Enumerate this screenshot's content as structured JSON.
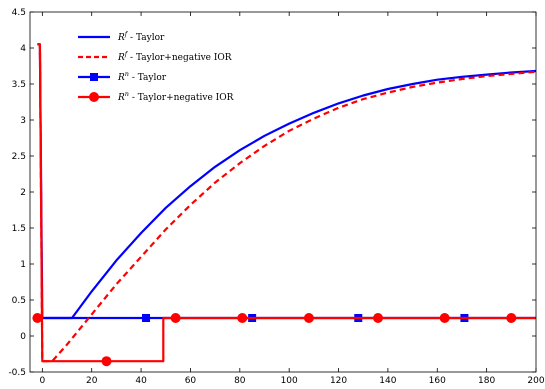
{
  "chart_data": {
    "type": "line",
    "title": "",
    "xlabel": "",
    "ylabel": "",
    "xlim": [
      -5,
      200
    ],
    "ylim": [
      -0.5,
      4.5
    ],
    "xticks": [
      0,
      20,
      40,
      60,
      80,
      100,
      120,
      140,
      160,
      180,
      200
    ],
    "yticks": [
      -0.5,
      0,
      0.5,
      1,
      1.5,
      2,
      2.5,
      3,
      3.5,
      4,
      4.5
    ],
    "xtick_labels": [
      "0",
      "20",
      "40",
      "60",
      "80",
      "100",
      "120",
      "140",
      "160",
      "180",
      "200"
    ],
    "ytick_labels": [
      "-0.5",
      "0",
      "0.5",
      "1",
      "1.5",
      "2",
      "2.5",
      "3",
      "3.5",
      "4",
      "4.5"
    ],
    "grid": false,
    "legend_position": "top-left",
    "series": [
      {
        "name": "R^f - Taylor",
        "legend": {
          "base": "R",
          "sup": "f",
          "text": " - Taylor"
        },
        "color": "#0000ff",
        "style": "solid",
        "marker": "none",
        "points": [
          [
            -2,
            4.05
          ],
          [
            -1,
            4.05
          ],
          [
            0,
            0.25
          ],
          [
            12,
            0.25
          ],
          [
            20,
            0.62
          ],
          [
            30,
            1.05
          ],
          [
            40,
            1.43
          ],
          [
            50,
            1.78
          ],
          [
            60,
            2.08
          ],
          [
            70,
            2.35
          ],
          [
            80,
            2.58
          ],
          [
            90,
            2.78
          ],
          [
            100,
            2.95
          ],
          [
            110,
            3.1
          ],
          [
            120,
            3.23
          ],
          [
            130,
            3.34
          ],
          [
            140,
            3.43
          ],
          [
            150,
            3.5
          ],
          [
            160,
            3.56
          ],
          [
            170,
            3.6
          ],
          [
            180,
            3.63
          ],
          [
            190,
            3.66
          ],
          [
            200,
            3.68
          ]
        ]
      },
      {
        "name": "R^f - Taylor+negative IOR",
        "legend": {
          "base": "R",
          "sup": "f",
          "text": " - Taylor+negative IOR"
        },
        "color": "#ff0000",
        "style": "dashed",
        "marker": "none",
        "points": [
          [
            -2,
            4.05
          ],
          [
            -1,
            4.05
          ],
          [
            0,
            -0.35
          ],
          [
            4,
            -0.35
          ],
          [
            10,
            -0.12
          ],
          [
            20,
            0.3
          ],
          [
            30,
            0.72
          ],
          [
            40,
            1.1
          ],
          [
            50,
            1.48
          ],
          [
            60,
            1.82
          ],
          [
            70,
            2.13
          ],
          [
            80,
            2.4
          ],
          [
            90,
            2.64
          ],
          [
            100,
            2.85
          ],
          [
            110,
            3.02
          ],
          [
            120,
            3.17
          ],
          [
            130,
            3.29
          ],
          [
            140,
            3.38
          ],
          [
            150,
            3.46
          ],
          [
            160,
            3.52
          ],
          [
            170,
            3.57
          ],
          [
            180,
            3.61
          ],
          [
            190,
            3.64
          ],
          [
            200,
            3.67
          ]
        ]
      },
      {
        "name": "R^n - Taylor",
        "legend": {
          "base": "R",
          "sup": "n",
          "text": " - Taylor"
        },
        "color": "#0000ff",
        "style": "solid",
        "marker": "square",
        "points": [
          [
            -2,
            0.25
          ],
          [
            200,
            0.25
          ]
        ],
        "markers": [
          [
            42,
            0.25
          ],
          [
            85,
            0.25
          ],
          [
            128,
            0.25
          ],
          [
            171,
            0.25
          ]
        ]
      },
      {
        "name": "R^n - Taylor+negative IOR",
        "legend": {
          "base": "R",
          "sup": "n",
          "text": " - Taylor+negative IOR"
        },
        "color": "#ff0000",
        "style": "solid",
        "marker": "circle",
        "points": [
          [
            -2,
            4.05
          ],
          [
            -1,
            4.05
          ],
          [
            0,
            -0.35
          ],
          [
            49,
            -0.35
          ],
          [
            49,
            0.25
          ],
          [
            200,
            0.25
          ]
        ],
        "markers": [
          [
            -2,
            0.25
          ],
          [
            26,
            -0.35
          ],
          [
            54,
            0.25
          ],
          [
            81,
            0.25
          ],
          [
            108,
            0.25
          ],
          [
            136,
            0.25
          ],
          [
            163,
            0.25
          ],
          [
            190,
            0.25
          ]
        ]
      }
    ]
  }
}
